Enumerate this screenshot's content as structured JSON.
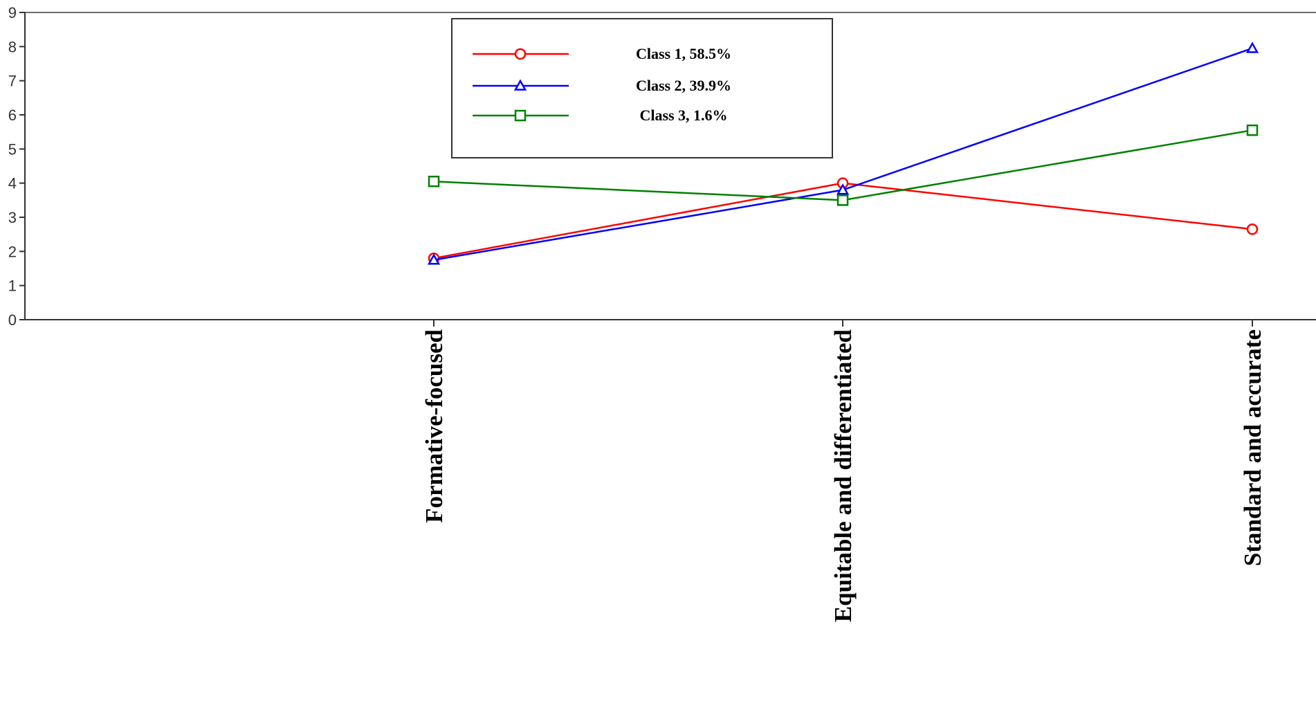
{
  "chart_data": {
    "type": "line",
    "categories": [
      "Formative-focused",
      "Equitable and differentiated",
      "Standard and accurate"
    ],
    "series": [
      {
        "name": "Class 1, 58.5%",
        "values": [
          1.8,
          4.0,
          2.65
        ],
        "color": "#ff0000",
        "marker": "circle"
      },
      {
        "name": "Class 2, 39.9%",
        "values": [
          1.75,
          3.8,
          7.95
        ],
        "color": "#0000ff",
        "marker": "triangle"
      },
      {
        "name": "Class 3, 1.6%",
        "values": [
          4.05,
          3.5,
          5.55
        ],
        "color": "#008000",
        "marker": "square"
      }
    ],
    "yticks": [
      "0",
      "1",
      "2",
      "3",
      "4",
      "5",
      "6",
      "7",
      "8",
      "9"
    ],
    "ylim": [
      0,
      9
    ],
    "xlabel": "",
    "ylabel": "",
    "title": "",
    "grid": false,
    "legend_position": "top-center"
  }
}
